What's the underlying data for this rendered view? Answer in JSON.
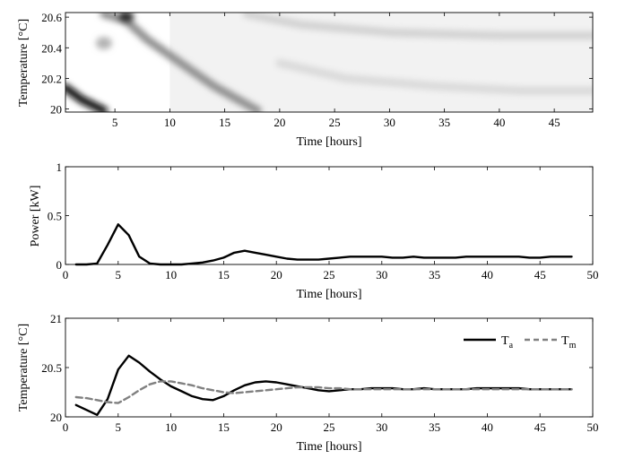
{
  "chart_data": [
    {
      "type": "heatmap",
      "title": "",
      "xlabel": "Time [hours]",
      "ylabel": "Temperature [°C]",
      "xlim": [
        0.5,
        48.5
      ],
      "ylim": [
        19.98,
        20.63
      ],
      "xticks": [
        5,
        10,
        15,
        20,
        25,
        30,
        35,
        40,
        45
      ],
      "yticks": [
        20,
        20.2,
        20.4,
        20.6
      ],
      "ytick_labels": [
        "20",
        "20.2",
        "20.4",
        "20.6"
      ],
      "colormap": "white-to-black (higher probability darker)",
      "bands": [
        {
          "x": [
            0.5,
            2,
            4
          ],
          "y": [
            20.14,
            20.06,
            19.99
          ],
          "darkness": 0.95
        },
        {
          "x": [
            4,
            6,
            8,
            11,
            14,
            18
          ],
          "y": [
            20.62,
            20.58,
            20.45,
            20.3,
            20.15,
            19.99
          ],
          "darkness": 0.45
        },
        {
          "x": [
            17,
            22,
            30,
            40,
            48.5
          ],
          "y": [
            20.62,
            20.55,
            20.5,
            20.48,
            20.48
          ],
          "darkness": 0.18
        },
        {
          "x": [
            20,
            26,
            34,
            42,
            48.5
          ],
          "y": [
            20.3,
            20.2,
            20.15,
            20.12,
            20.12
          ],
          "darkness": 0.15
        }
      ],
      "hotspots": [
        {
          "x": 6,
          "y": 20.6,
          "darkness": 0.8
        },
        {
          "x": 4,
          "y": 20.43,
          "darkness": 0.3
        }
      ]
    },
    {
      "type": "line",
      "title": "",
      "xlabel": "Time [hours]",
      "ylabel": "Power [kW]",
      "xlim": [
        0,
        50
      ],
      "ylim": [
        0,
        1
      ],
      "xticks": [
        0,
        5,
        10,
        15,
        20,
        25,
        30,
        35,
        40,
        45,
        50
      ],
      "yticks": [
        0,
        0.5,
        1
      ],
      "ytick_labels": [
        "0",
        "0.5",
        "1"
      ],
      "series": [
        {
          "name": "",
          "style": "solid",
          "color": "#000000",
          "x": [
            1,
            2,
            3,
            4,
            5,
            6,
            7,
            8,
            9,
            10,
            11,
            12,
            13,
            14,
            15,
            16,
            17,
            18,
            19,
            20,
            21,
            22,
            23,
            24,
            25,
            26,
            27,
            28,
            29,
            30,
            31,
            32,
            33,
            34,
            35,
            36,
            37,
            38,
            39,
            40,
            41,
            42,
            43,
            44,
            45,
            46,
            47,
            48
          ],
          "y": [
            0,
            0,
            0.01,
            0.2,
            0.41,
            0.3,
            0.08,
            0.01,
            0,
            0,
            0,
            0.01,
            0.02,
            0.04,
            0.07,
            0.12,
            0.14,
            0.12,
            0.1,
            0.08,
            0.06,
            0.05,
            0.05,
            0.05,
            0.06,
            0.07,
            0.08,
            0.08,
            0.08,
            0.08,
            0.07,
            0.07,
            0.08,
            0.07,
            0.07,
            0.07,
            0.07,
            0.08,
            0.08,
            0.08,
            0.08,
            0.08,
            0.08,
            0.07,
            0.07,
            0.08,
            0.08,
            0.08
          ]
        }
      ]
    },
    {
      "type": "line",
      "title": "",
      "xlabel": "Time [hours]",
      "ylabel": "Temperature [°C]",
      "xlim": [
        0,
        50
      ],
      "ylim": [
        20,
        21
      ],
      "xticks": [
        0,
        5,
        10,
        15,
        20,
        25,
        30,
        35,
        40,
        45,
        50
      ],
      "yticks": [
        20,
        20.5,
        21
      ],
      "ytick_labels": [
        "20",
        "20.5",
        "21"
      ],
      "legend": "top-right",
      "legend_labels": {
        "ta_main": "T",
        "ta_sub": "a",
        "tm_main": "T",
        "tm_sub": "m"
      },
      "series": [
        {
          "name": "Ta",
          "style": "solid",
          "color": "#000000",
          "x": [
            1,
            3,
            4,
            5,
            6,
            7,
            8,
            9,
            10,
            11,
            12,
            13,
            14,
            15,
            16,
            17,
            18,
            19,
            20,
            21,
            22,
            23,
            24,
            25,
            26,
            27,
            28,
            29,
            30,
            31,
            32,
            33,
            34,
            35,
            36,
            37,
            38,
            39,
            40,
            41,
            42,
            43,
            44,
            45,
            46,
            47,
            48
          ],
          "y": [
            20.12,
            20.02,
            20.18,
            20.48,
            20.62,
            20.55,
            20.46,
            20.38,
            20.31,
            20.26,
            20.21,
            20.18,
            20.17,
            20.21,
            20.27,
            20.32,
            20.35,
            20.36,
            20.35,
            20.33,
            20.31,
            20.29,
            20.27,
            20.26,
            20.27,
            20.28,
            20.28,
            20.29,
            20.29,
            20.29,
            20.28,
            20.28,
            20.29,
            20.28,
            20.28,
            20.28,
            20.28,
            20.29,
            20.29,
            20.29,
            20.29,
            20.29,
            20.28,
            20.28,
            20.28,
            20.28,
            20.28
          ]
        },
        {
          "name": "Tm",
          "style": "dashed",
          "color": "#808080",
          "x": [
            1,
            2,
            3,
            4,
            5,
            6,
            7,
            8,
            9,
            10,
            11,
            12,
            13,
            14,
            15,
            16,
            17,
            18,
            19,
            20,
            21,
            22,
            23,
            24,
            25,
            26,
            27,
            28,
            29,
            30,
            31,
            32,
            33,
            34,
            35,
            36,
            37,
            38,
            39,
            40,
            41,
            42,
            43,
            44,
            45,
            46,
            47,
            48
          ],
          "y": [
            20.2,
            20.19,
            20.17,
            20.15,
            20.14,
            20.2,
            20.27,
            20.33,
            20.36,
            20.36,
            20.34,
            20.32,
            20.29,
            20.27,
            20.25,
            20.24,
            20.25,
            20.26,
            20.27,
            20.28,
            20.29,
            20.3,
            20.3,
            20.3,
            20.29,
            20.29,
            20.28,
            20.28,
            20.28,
            20.28,
            20.28,
            20.28,
            20.28,
            20.28,
            20.28,
            20.28,
            20.28,
            20.28,
            20.28,
            20.28,
            20.28,
            20.28,
            20.28,
            20.28,
            20.28,
            20.28,
            20.28,
            20.28
          ]
        }
      ]
    }
  ]
}
